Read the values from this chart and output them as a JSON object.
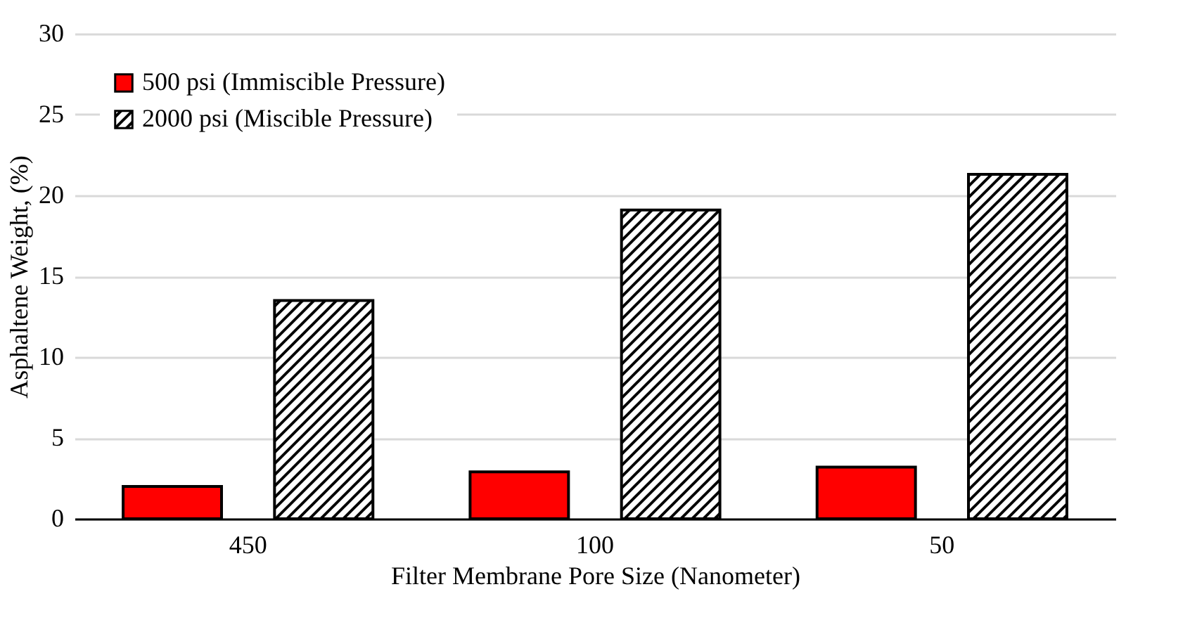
{
  "chart_data": {
    "type": "bar",
    "xlabel": "Filter Membrane Pore Size (Nanometer)",
    "ylabel": "Asphaltene Weight, (%)",
    "categories": [
      "450",
      "100",
      "50"
    ],
    "series": [
      {
        "name": "500 psi (Immiscible Pressure)",
        "color": "#ff0000",
        "values": [
          2.0,
          2.9,
          3.2
        ]
      },
      {
        "name": "2000 psi (Miscible Pressure)",
        "color": "#000000",
        "values": [
          13.5,
          19.1,
          21.3
        ]
      }
    ],
    "ylim": [
      0,
      30
    ],
    "yticks": [
      0,
      5,
      10,
      15,
      20,
      25,
      30
    ],
    "grid": "y",
    "legend": "top left"
  }
}
